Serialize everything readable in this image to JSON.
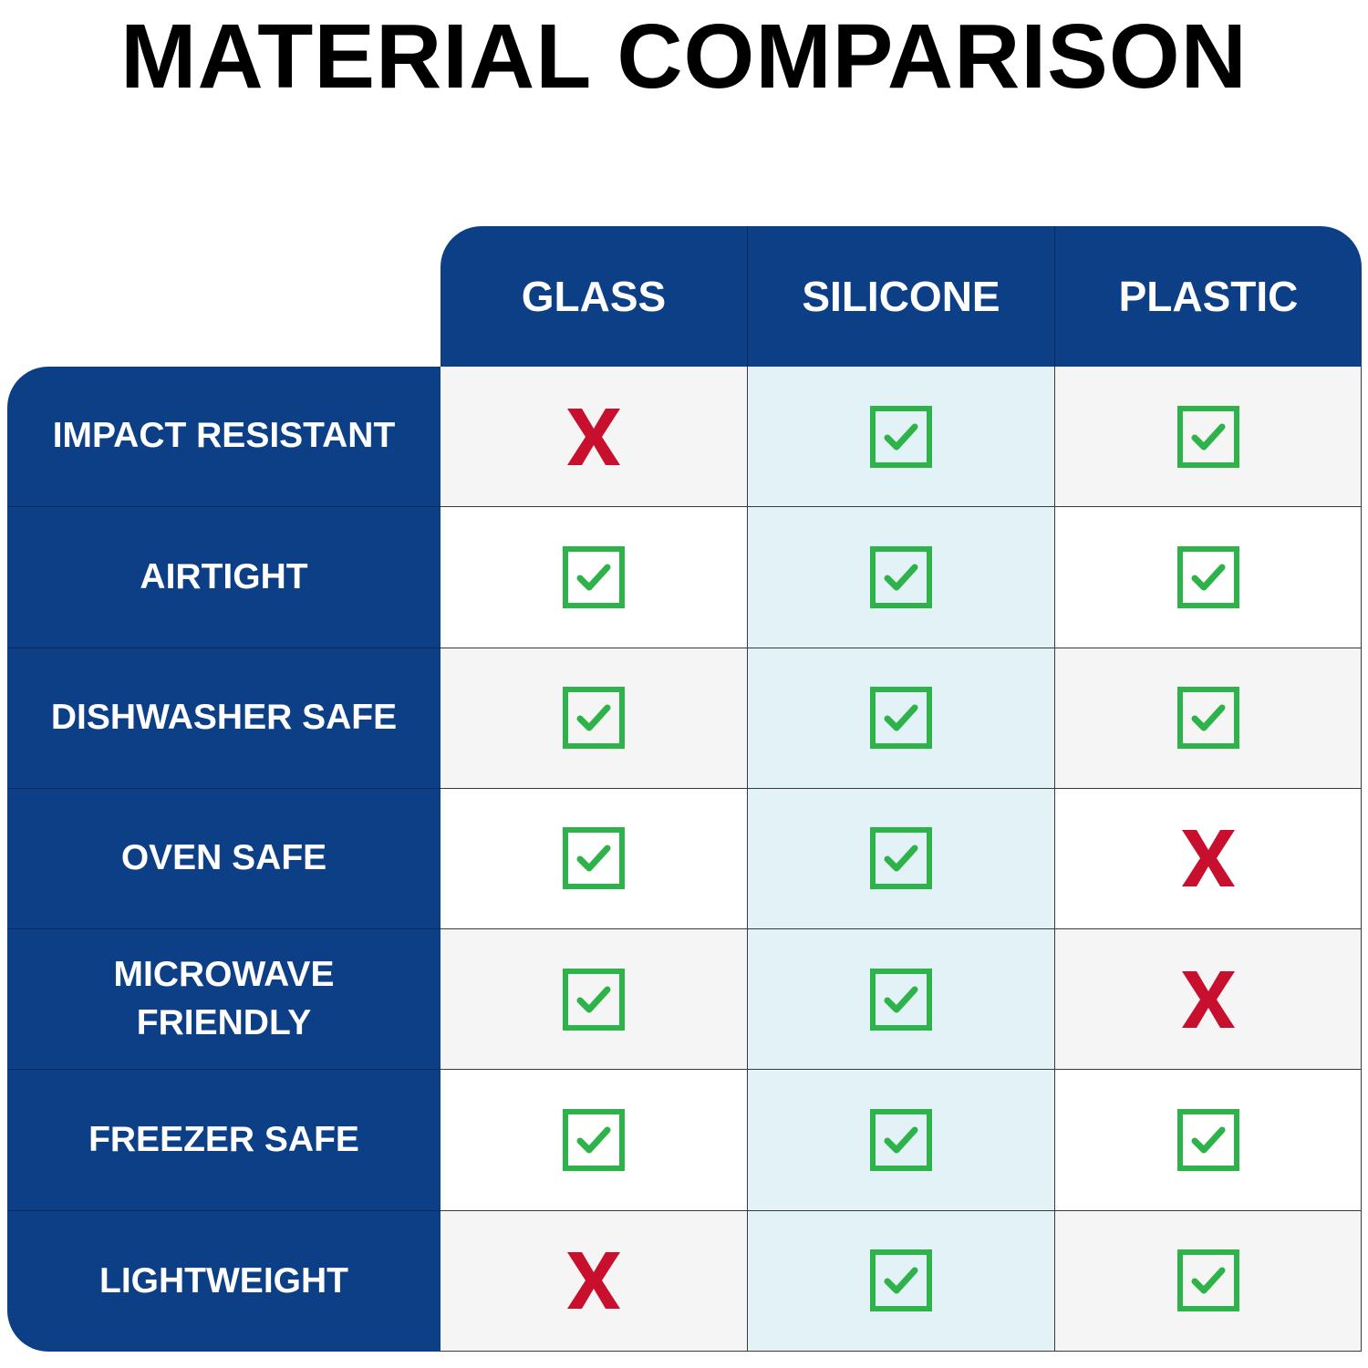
{
  "title": "MATERIAL COMPARISON",
  "table": {
    "columns": [
      "GLASS",
      "SILICONE",
      "PLASTIC"
    ],
    "rows": [
      {
        "label": "IMPACT RESISTANT",
        "cells": [
          false,
          true,
          true
        ]
      },
      {
        "label": "AIRTIGHT",
        "cells": [
          true,
          true,
          true
        ]
      },
      {
        "label": "DISHWASHER SAFE",
        "cells": [
          true,
          true,
          true
        ]
      },
      {
        "label": "OVEN SAFE",
        "cells": [
          true,
          true,
          false
        ]
      },
      {
        "label": "MICROWAVE FRIENDLY",
        "cells": [
          true,
          true,
          false
        ]
      },
      {
        "label": "FREEZER SAFE",
        "cells": [
          true,
          true,
          true
        ]
      },
      {
        "label": "LIGHTWEIGHT",
        "cells": [
          false,
          true,
          true
        ]
      }
    ]
  }
}
